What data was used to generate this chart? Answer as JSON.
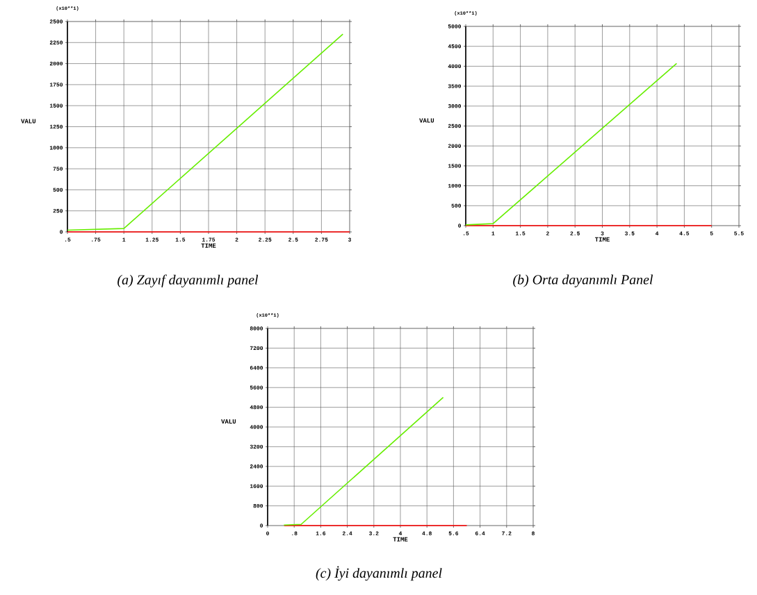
{
  "chart_data": [
    {
      "type": "line",
      "title": "(a) Zayıf dayanımlı panel",
      "xlabel": "TIME",
      "ylabel": "VALU",
      "annotations": [
        "(x10**1)"
      ],
      "xlim": [
        0.5,
        3
      ],
      "ylim": [
        0,
        2500
      ],
      "xticks": [
        {
          "value": 0.5,
          "label": ".5"
        },
        {
          "value": 0.75,
          "label": ".75"
        },
        1,
        1.25,
        1.5,
        1.75,
        2,
        2.25,
        2.5,
        2.75,
        3
      ],
      "yticks": [
        0,
        250,
        500,
        750,
        1000,
        1250,
        1500,
        1750,
        2000,
        2250,
        2500
      ],
      "grid": true,
      "series": [
        {
          "color": "#ff0000",
          "x": [
            0.5,
            3
          ],
          "values": [
            0,
            0
          ]
        },
        {
          "color": "#66ee00",
          "x": [
            0.5,
            1,
            2.94
          ],
          "values": [
            20,
            40,
            2350
          ]
        }
      ]
    },
    {
      "type": "line",
      "title": "(b) Orta dayanımlı Panel",
      "xlabel": "TIME",
      "ylabel": "VALU",
      "annotations": [
        "(x10**1)"
      ],
      "xlim": [
        0.5,
        5.5
      ],
      "ylim": [
        0,
        5000
      ],
      "xticks": [
        {
          "value": 0.5,
          "label": ".5"
        },
        1,
        1.5,
        2,
        2.5,
        3,
        3.5,
        4,
        4.5,
        5,
        5.5
      ],
      "yticks": [
        0,
        500,
        1000,
        1500,
        2000,
        2500,
        3000,
        3500,
        4000,
        4500,
        5000
      ],
      "grid": true,
      "series": [
        {
          "color": "#ff0000",
          "x": [
            0.5,
            5
          ],
          "values": [
            0,
            0
          ]
        },
        {
          "color": "#66ee00",
          "x": [
            0.5,
            1,
            4.36
          ],
          "values": [
            20,
            50,
            4070
          ]
        }
      ]
    },
    {
      "type": "line",
      "title": "(c) İyi dayanımlı panel",
      "xlabel": "TIME",
      "ylabel": "VALU",
      "annotations": [
        "(x10**1)"
      ],
      "xlim": [
        0,
        8
      ],
      "ylim": [
        0,
        8000
      ],
      "xticks": [
        0,
        {
          "value": 0.8,
          "label": ".8"
        },
        1.6,
        2.4,
        3.2,
        4,
        4.8,
        5.6,
        6.4,
        7.2,
        8
      ],
      "yticks": [
        0,
        800,
        1600,
        2400,
        3200,
        4000,
        4800,
        5600,
        6400,
        7200,
        8000
      ],
      "grid": true,
      "series": [
        {
          "color": "#ff0000",
          "x": [
            0.5,
            6
          ],
          "values": [
            0,
            0
          ]
        },
        {
          "color": "#66ee00",
          "x": [
            0.49,
            1.01,
            5.29
          ],
          "values": [
            20,
            50,
            5200
          ]
        }
      ]
    }
  ]
}
